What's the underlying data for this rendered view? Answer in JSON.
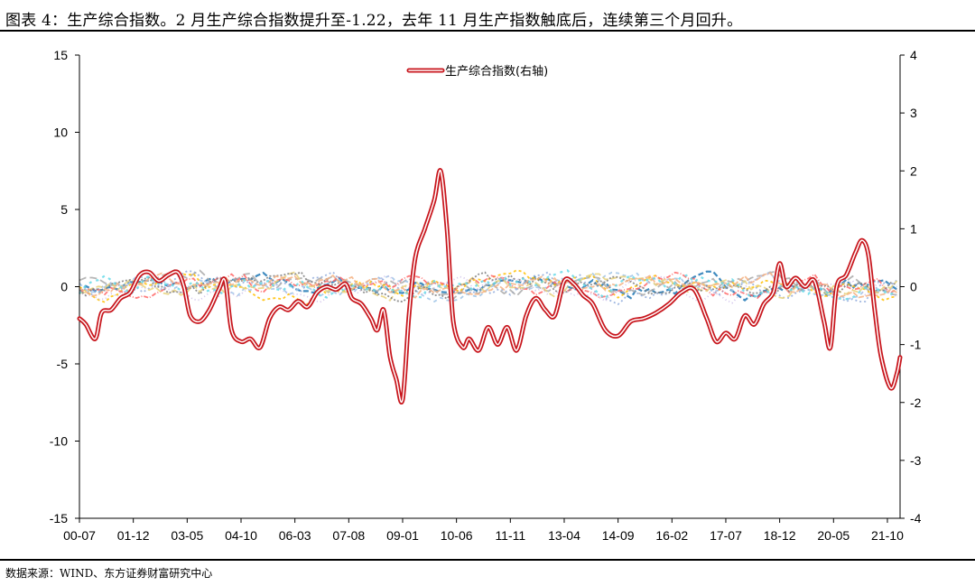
{
  "header": {
    "title": "图表 4：生产综合指数。2 月生产综合指数提升至-1.22，去年 11 月生产指数触底后，连续第三个月回升。"
  },
  "footer": {
    "source": "数据来源：WIND、东方证券财富研究中心"
  },
  "chart_data": {
    "type": "line",
    "x_ticks": [
      "00-07",
      "01-12",
      "03-05",
      "04-10",
      "06-03",
      "07-08",
      "09-01",
      "10-06",
      "11-11",
      "13-04",
      "14-09",
      "16-02",
      "17-07",
      "18-12",
      "20-05",
      "21-10"
    ],
    "x_range": [
      "2000-07",
      "2022-02"
    ],
    "left_axis": {
      "ylim": [
        -15,
        15
      ],
      "ticks": [
        15,
        10,
        5,
        0,
        -5,
        -10,
        -15
      ]
    },
    "right_axis": {
      "ylim": [
        -4,
        4
      ],
      "ticks": [
        4,
        3,
        2,
        1,
        0,
        -1,
        -2,
        -3,
        -4
      ]
    },
    "grid": false,
    "legend": {
      "position": "top-center",
      "entries": [
        "生产综合指数(右轴)"
      ]
    },
    "series": [
      {
        "name": "生产综合指数(右轴)",
        "axis": "right",
        "color": "#c8161d",
        "style": "double-line",
        "points": [
          [
            "2000-07",
            -0.55
          ],
          [
            "2000-09",
            -0.65
          ],
          [
            "2000-12",
            -0.9
          ],
          [
            "2001-02",
            -0.45
          ],
          [
            "2001-05",
            -0.4
          ],
          [
            "2001-08",
            -0.2
          ],
          [
            "2001-11",
            -0.1
          ],
          [
            "2002-02",
            0.2
          ],
          [
            "2002-05",
            0.25
          ],
          [
            "2002-08",
            0.1
          ],
          [
            "2002-11",
            0.2
          ],
          [
            "2003-02",
            0.25
          ],
          [
            "2003-04",
            0.0
          ],
          [
            "2003-06",
            -0.5
          ],
          [
            "2003-09",
            -0.6
          ],
          [
            "2003-12",
            -0.4
          ],
          [
            "2004-03",
            -0.05
          ],
          [
            "2004-05",
            0.1
          ],
          [
            "2004-07",
            -0.75
          ],
          [
            "2004-10",
            -0.95
          ],
          [
            "2005-01",
            -0.9
          ],
          [
            "2005-04",
            -1.05
          ],
          [
            "2005-07",
            -0.55
          ],
          [
            "2005-10",
            -0.35
          ],
          [
            "2006-01",
            -0.4
          ],
          [
            "2006-04",
            -0.25
          ],
          [
            "2006-07",
            -0.35
          ],
          [
            "2006-10",
            -0.1
          ],
          [
            "2007-01",
            0.0
          ],
          [
            "2007-04",
            -0.05
          ],
          [
            "2007-07",
            0.05
          ],
          [
            "2007-09",
            -0.2
          ],
          [
            "2007-12",
            -0.3
          ],
          [
            "2008-03",
            -0.55
          ],
          [
            "2008-05",
            -0.75
          ],
          [
            "2008-07",
            -0.4
          ],
          [
            "2008-09",
            -1.2
          ],
          [
            "2008-11",
            -1.6
          ],
          [
            "2009-01",
            -1.95
          ],
          [
            "2009-03",
            -0.5
          ],
          [
            "2009-05",
            0.5
          ],
          [
            "2009-08",
            1.0
          ],
          [
            "2009-11",
            1.5
          ],
          [
            "2010-01",
            2.0
          ],
          [
            "2010-03",
            1.0
          ],
          [
            "2010-05",
            -0.6
          ],
          [
            "2010-08",
            -1.05
          ],
          [
            "2010-10",
            -0.9
          ],
          [
            "2011-01",
            -1.1
          ],
          [
            "2011-04",
            -0.7
          ],
          [
            "2011-07",
            -1.0
          ],
          [
            "2011-10",
            -0.7
          ],
          [
            "2012-01",
            -1.1
          ],
          [
            "2012-04",
            -0.5
          ],
          [
            "2012-07",
            -0.2
          ],
          [
            "2012-10",
            -0.4
          ],
          [
            "2013-01",
            -0.5
          ],
          [
            "2013-04",
            0.1
          ],
          [
            "2013-07",
            0.05
          ],
          [
            "2013-10",
            -0.15
          ],
          [
            "2014-01",
            -0.3
          ],
          [
            "2014-05",
            -0.75
          ],
          [
            "2014-09",
            -0.85
          ],
          [
            "2015-01",
            -0.6
          ],
          [
            "2015-05",
            -0.55
          ],
          [
            "2015-09",
            -0.45
          ],
          [
            "2016-01",
            -0.3
          ],
          [
            "2016-05",
            -0.1
          ],
          [
            "2016-09",
            -0.05
          ],
          [
            "2017-01",
            -0.55
          ],
          [
            "2017-04",
            -0.95
          ],
          [
            "2017-07",
            -0.8
          ],
          [
            "2017-10",
            -0.9
          ],
          [
            "2018-01",
            -0.5
          ],
          [
            "2018-04",
            -0.65
          ],
          [
            "2018-07",
            -0.3
          ],
          [
            "2018-10",
            -0.1
          ],
          [
            "2018-12",
            0.4
          ],
          [
            "2019-02",
            0.0
          ],
          [
            "2019-05",
            0.15
          ],
          [
            "2019-08",
            0.0
          ],
          [
            "2019-11",
            0.1
          ],
          [
            "2020-02",
            -0.6
          ],
          [
            "2020-04",
            -1.05
          ],
          [
            "2020-06",
            0.0
          ],
          [
            "2020-09",
            0.2
          ],
          [
            "2020-12",
            0.6
          ],
          [
            "2021-02",
            0.8
          ],
          [
            "2021-04",
            0.55
          ],
          [
            "2021-06",
            -0.4
          ],
          [
            "2021-08",
            -1.2
          ],
          [
            "2021-11",
            -1.75
          ],
          [
            "2022-01",
            -1.5
          ],
          [
            "2022-02",
            -1.22
          ]
        ]
      }
    ],
    "component_series_count": 11,
    "component_colors": [
      "#1f77b4",
      "#8faadc",
      "#a9a9a9",
      "#ffc000",
      "#ff6666",
      "#9dc3e6",
      "#c9b8e8",
      "#e8d27a",
      "#7f7f7f",
      "#f4b183",
      "#66d9e8"
    ]
  }
}
